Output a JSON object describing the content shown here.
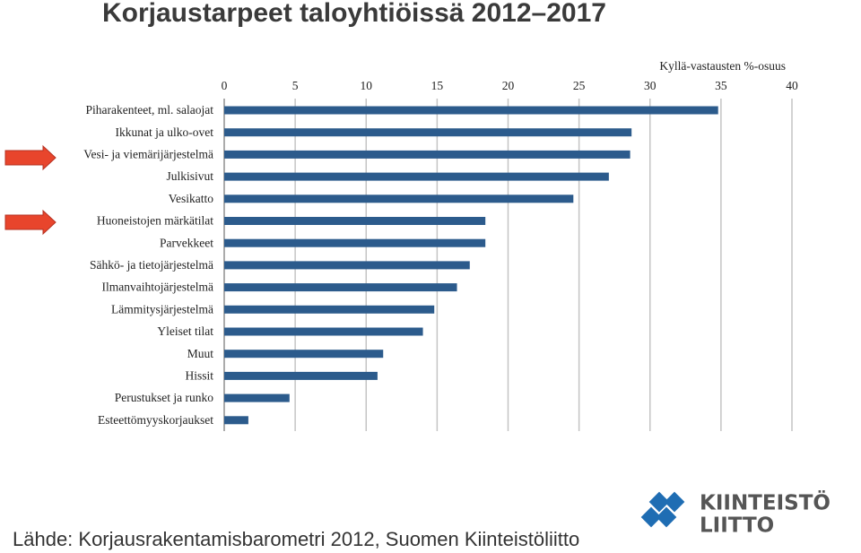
{
  "chart_data": {
    "type": "bar",
    "orientation": "horizontal",
    "title": "Korjaustarpeet taloyhtiöissä 2012–2017",
    "x_label": "Kyllä-vastausten %-osuus",
    "categories": [
      "Piharakenteet, ml. salaojat",
      "Ikkunat ja ulko-ovet",
      "Vesi- ja viemärijärjestelmä",
      "Julkisivut",
      "Vesikatto",
      "Huoneistojen märkätilat",
      "Parvekkeet",
      "Sähkö- ja tietojärjestelmä",
      "Ilmanvaihtojärjestelmä",
      "Lämmitysjärjestelmä",
      "Yleiset tilat",
      "Muut",
      "Hissit",
      "Perustukset ja runko",
      "Esteettömyyskorjaukset"
    ],
    "values": [
      34.8,
      28.7,
      28.6,
      27.1,
      24.6,
      18.4,
      18.4,
      17.3,
      16.4,
      14.8,
      14.0,
      11.2,
      10.8,
      4.6,
      1.7
    ],
    "color": "#2c5b8c",
    "xlim": [
      0,
      40
    ],
    "xticks": [
      0,
      5,
      10,
      15,
      20,
      25,
      30,
      35,
      40
    ],
    "grid": true,
    "source": "Lähde: Korjausrakentamisbarometri 2012, Suomen Kiinteistöliitto",
    "logo_text": [
      "KIINTEISTÖ",
      "LIITTO"
    ]
  }
}
